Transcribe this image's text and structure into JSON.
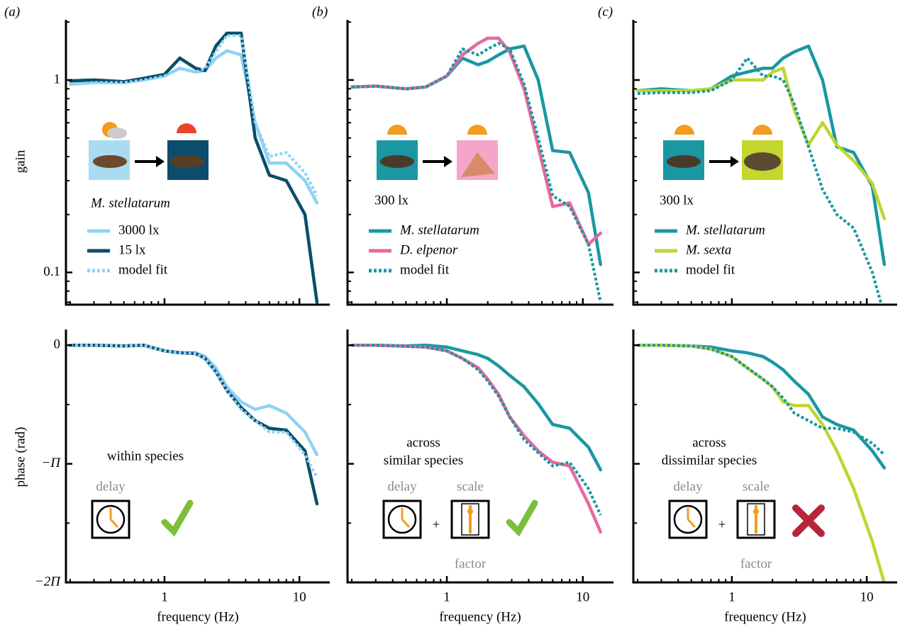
{
  "chart_data": [
    {
      "type": "line",
      "panel_label": "(a)",
      "ylabel": "gain",
      "annotations": [
        "M. stellatarum"
      ],
      "x": [
        0.2,
        0.3,
        0.5,
        0.7,
        1.0,
        1.3,
        1.7,
        2.0,
        2.4,
        2.9,
        3.7,
        4.7,
        6.0,
        8.0,
        11.0,
        13.5
      ],
      "xlim": [
        0.186,
        16.8
      ],
      "xticks": [
        1,
        10
      ],
      "xtick_labels": false,
      "xminorticks": [
        0.2,
        0.3,
        0.4,
        0.5,
        0.6,
        0.7,
        0.8,
        0.9,
        2,
        3,
        4,
        5,
        6,
        7,
        8,
        9
      ],
      "ylog": true,
      "ylim": [
        0.068,
        2.02
      ],
      "yticks": [
        1,
        0.1
      ],
      "yminorticks": [
        0.07,
        0.08,
        0.09,
        0.2,
        0.3,
        0.4,
        0.5,
        0.6,
        0.7,
        0.8,
        0.9,
        2
      ],
      "series": [
        {
          "name": "3000 lx",
          "color": "#8fd3f4",
          "values": [
            0.95,
            0.97,
            0.97,
            1.0,
            1.05,
            1.15,
            1.1,
            1.12,
            1.3,
            1.42,
            1.35,
            0.6,
            0.37,
            0.37,
            0.3,
            0.23
          ]
        },
        {
          "name": "15 lx",
          "color": "#0b4d6a",
          "values": [
            0.99,
            1.0,
            0.98,
            1.02,
            1.07,
            1.3,
            1.15,
            1.12,
            1.5,
            1.75,
            1.75,
            0.5,
            0.32,
            0.3,
            0.2,
            0.07
          ]
        },
        {
          "name": "model fit",
          "color": "#8fd3f4",
          "dash": true,
          "values": [
            0.95,
            0.97,
            0.97,
            1.0,
            1.05,
            1.15,
            1.1,
            1.15,
            1.4,
            1.7,
            1.7,
            0.6,
            0.4,
            0.42,
            0.33,
            0.25
          ]
        }
      ]
    },
    {
      "type": "line",
      "panel_label": "(b)",
      "annotations": [
        "300 lx"
      ],
      "x": [
        0.2,
        0.3,
        0.5,
        0.7,
        1.0,
        1.3,
        1.7,
        2.0,
        2.4,
        2.9,
        3.7,
        4.7,
        6.0,
        8.0,
        11.0,
        13.5
      ],
      "xlim": [
        0.186,
        16.8
      ],
      "xticks": [
        1,
        10
      ],
      "xtick_labels": false,
      "xminorticks": [
        0.2,
        0.3,
        0.4,
        0.5,
        0.6,
        0.7,
        0.8,
        0.9,
        2,
        3,
        4,
        5,
        6,
        7,
        8,
        9
      ],
      "ylog": true,
      "ylim": [
        0.068,
        2.02
      ],
      "yticks": [
        1,
        0.1
      ],
      "ytick_labels": false,
      "yminorticks": [
        0.07,
        0.08,
        0.09,
        0.2,
        0.3,
        0.4,
        0.5,
        0.6,
        0.7,
        0.8,
        0.9,
        2
      ],
      "series": [
        {
          "name": "M. stellatarum",
          "color": "#1a97a3",
          "values": [
            0.92,
            0.93,
            0.9,
            0.92,
            1.05,
            1.3,
            1.2,
            1.25,
            1.35,
            1.45,
            1.5,
            1.0,
            0.43,
            0.42,
            0.26,
            0.11
          ]
        },
        {
          "name": "D. elpenor",
          "color": "#e8699e",
          "values": [
            0.92,
            0.93,
            0.9,
            0.92,
            1.05,
            1.35,
            1.55,
            1.65,
            1.65,
            1.4,
            0.9,
            0.45,
            0.22,
            0.23,
            0.14,
            0.16
          ]
        },
        {
          "name": "model fit",
          "color": "#1a97a3",
          "dash": true,
          "values": [
            0.92,
            0.93,
            0.9,
            0.92,
            1.05,
            1.45,
            1.35,
            1.45,
            1.55,
            1.45,
            0.95,
            0.5,
            0.25,
            0.22,
            0.14,
            0.07
          ]
        }
      ]
    },
    {
      "type": "line",
      "panel_label": "(c)",
      "annotations": [
        "300 lx"
      ],
      "x": [
        0.2,
        0.3,
        0.5,
        0.7,
        1.0,
        1.3,
        1.7,
        2.0,
        2.4,
        2.9,
        3.7,
        4.7,
        6.0,
        8.0,
        11.0,
        13.5
      ],
      "xlim": [
        0.186,
        16.8
      ],
      "xticks": [
        1,
        10
      ],
      "xtick_labels": false,
      "xminorticks": [
        0.2,
        0.3,
        0.4,
        0.5,
        0.6,
        0.7,
        0.8,
        0.9,
        2,
        3,
        4,
        5,
        6,
        7,
        8,
        9
      ],
      "ylog": true,
      "ylim": [
        0.068,
        2.02
      ],
      "yticks": [
        1,
        0.1
      ],
      "ytick_labels": false,
      "yminorticks": [
        0.07,
        0.08,
        0.09,
        0.2,
        0.3,
        0.4,
        0.5,
        0.6,
        0.7,
        0.8,
        0.9,
        2
      ],
      "series": [
        {
          "name": "M. stellatarum",
          "color": "#1a97a3",
          "values": [
            0.88,
            0.9,
            0.88,
            0.9,
            1.05,
            1.1,
            1.15,
            1.15,
            1.3,
            1.4,
            1.5,
            1.0,
            0.45,
            0.42,
            0.28,
            0.11
          ]
        },
        {
          "name": "M. sexta",
          "color": "#bfd631",
          "values": [
            0.88,
            0.88,
            0.88,
            0.9,
            1.0,
            1.0,
            1.0,
            1.1,
            1.15,
            0.7,
            0.46,
            0.6,
            0.46,
            0.38,
            0.29,
            0.19
          ]
        },
        {
          "name": "model fit",
          "color": "#1a97a3",
          "dash": true,
          "values": [
            0.85,
            0.86,
            0.86,
            0.88,
            1.0,
            1.3,
            1.05,
            1.05,
            1.0,
            0.75,
            0.45,
            0.27,
            0.2,
            0.17,
            0.1,
            0.06
          ]
        }
      ]
    },
    {
      "type": "line",
      "ylabel": "phase (rad)",
      "xlabel": "frequency (Hz)",
      "annotations": [
        "within species",
        "delay"
      ],
      "x": [
        0.2,
        0.3,
        0.5,
        0.7,
        1.0,
        1.3,
        1.7,
        2.0,
        2.4,
        2.9,
        3.7,
        4.7,
        6.0,
        8.0,
        11.0,
        13.5
      ],
      "xlim": [
        0.186,
        16.8
      ],
      "xticks": [
        1,
        10
      ],
      "xminorticks": [
        0.2,
        0.3,
        0.4,
        0.5,
        0.6,
        0.7,
        0.8,
        0.9,
        2,
        3,
        4,
        5,
        6,
        7,
        8,
        9
      ],
      "ylim": [
        -6.2832,
        0.38
      ],
      "yticks": [
        0,
        {
          "value": -3.1416,
          "label": "−Π"
        },
        {
          "value": -6.2832,
          "label": "−2Π"
        }
      ],
      "yminorticks": [
        -1.5708,
        -4.7124
      ],
      "series": [
        {
          "color": "#8fd3f4",
          "values": [
            0,
            0,
            -0.02,
            0,
            -0.15,
            -0.2,
            -0.2,
            -0.3,
            -0.6,
            -1.1,
            -1.5,
            -1.7,
            -1.6,
            -1.8,
            -2.3,
            -2.9
          ]
        },
        {
          "color": "#0b4d6a",
          "values": [
            0,
            0,
            -0.02,
            0,
            -0.15,
            -0.2,
            -0.22,
            -0.35,
            -0.7,
            -1.2,
            -1.65,
            -2.0,
            -2.2,
            -2.25,
            -2.8,
            -4.2
          ]
        },
        {
          "color": "#8fd3f4",
          "dash": true,
          "values": [
            0,
            0,
            -0.02,
            0,
            -0.15,
            -0.2,
            -0.22,
            -0.35,
            -0.7,
            -1.2,
            -1.7,
            -2.0,
            -2.3,
            -2.3,
            -2.9,
            -3.5
          ]
        }
      ]
    },
    {
      "type": "line",
      "xlabel": "frequency (Hz)",
      "annotations": [
        "across",
        "similar species",
        "delay",
        "+",
        "scale",
        "factor"
      ],
      "x": [
        0.2,
        0.3,
        0.5,
        0.7,
        1.0,
        1.3,
        1.7,
        2.0,
        2.4,
        2.9,
        3.7,
        4.7,
        6.0,
        8.0,
        11.0,
        13.5
      ],
      "xlim": [
        0.186,
        16.8
      ],
      "xticks": [
        1,
        10
      ],
      "xminorticks": [
        0.2,
        0.3,
        0.4,
        0.5,
        0.6,
        0.7,
        0.8,
        0.9,
        2,
        3,
        4,
        5,
        6,
        7,
        8,
        9
      ],
      "ylim": [
        -6.2832,
        0.38
      ],
      "yticks": [
        0,
        -3.1416,
        -6.2832
      ],
      "ytick_labels": false,
      "yminorticks": [
        -1.5708,
        -4.7124
      ],
      "series": [
        {
          "color": "#1a97a3",
          "values": [
            0,
            0,
            -0.02,
            0,
            -0.05,
            -0.15,
            -0.25,
            -0.35,
            -0.55,
            -0.8,
            -1.1,
            -1.55,
            -2.1,
            -2.2,
            -2.7,
            -3.3
          ]
        },
        {
          "color": "#e8699e",
          "values": [
            0,
            0,
            -0.03,
            -0.05,
            -0.15,
            -0.35,
            -0.6,
            -0.9,
            -1.3,
            -1.9,
            -2.4,
            -2.8,
            -3.1,
            -3.2,
            -4.2,
            -4.95
          ]
        },
        {
          "color": "#1a97a3",
          "dash": true,
          "values": [
            0,
            0,
            -0.03,
            -0.05,
            -0.15,
            -0.35,
            -0.65,
            -0.95,
            -1.35,
            -1.9,
            -2.5,
            -2.85,
            -3.2,
            -3.1,
            -3.8,
            -4.5
          ]
        }
      ]
    },
    {
      "type": "line",
      "xlabel": "frequency (Hz)",
      "annotations": [
        "across",
        "dissimilar species",
        "delay",
        "+",
        "scale",
        "factor"
      ],
      "x": [
        0.2,
        0.3,
        0.5,
        0.7,
        1.0,
        1.3,
        1.7,
        2.0,
        2.4,
        2.9,
        3.7,
        4.7,
        6.0,
        8.0,
        11.0,
        13.5
      ],
      "xlim": [
        0.186,
        16.8
      ],
      "xticks": [
        1,
        10
      ],
      "xminorticks": [
        0.2,
        0.3,
        0.4,
        0.5,
        0.6,
        0.7,
        0.8,
        0.9,
        2,
        3,
        4,
        5,
        6,
        7,
        8,
        9
      ],
      "ylim": [
        -6.2832,
        0.38
      ],
      "yticks": [
        0,
        -3.1416,
        -6.2832
      ],
      "ytick_labels": false,
      "yminorticks": [
        -1.5708,
        -4.7124
      ],
      "series": [
        {
          "color": "#1a97a3",
          "values": [
            0,
            0,
            -0.02,
            -0.05,
            -0.15,
            -0.2,
            -0.3,
            -0.45,
            -0.65,
            -0.95,
            -1.3,
            -1.9,
            -2.1,
            -2.25,
            -2.8,
            -3.25
          ]
        },
        {
          "color": "#bfd631",
          "values": [
            0,
            0,
            -0.02,
            -0.1,
            -0.3,
            -0.6,
            -0.9,
            -1.1,
            -1.5,
            -1.6,
            -1.6,
            -2.1,
            -2.8,
            -3.8,
            -5.2,
            -6.3
          ]
        },
        {
          "color": "#1a97a3",
          "dash": true,
          "values": [
            0,
            0,
            -0.02,
            -0.1,
            -0.3,
            -0.6,
            -0.9,
            -1.1,
            -1.4,
            -1.8,
            -2.0,
            -2.2,
            -2.2,
            -2.3,
            -2.6,
            -2.9
          ]
        }
      ]
    }
  ]
}
